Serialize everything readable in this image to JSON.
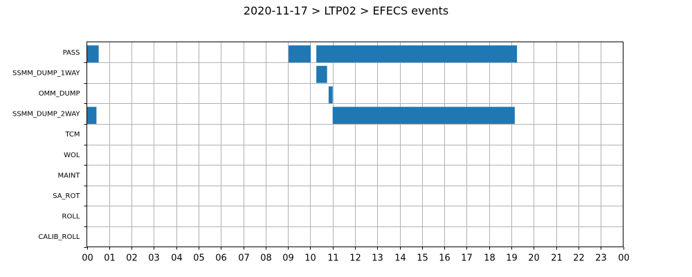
{
  "chart_data": {
    "type": "bar",
    "orientation": "horizontal-timeline",
    "title": "2020-11-17 > LTP02 > EFECS events",
    "xlabel": "",
    "ylabel": "",
    "xlim": [
      0,
      24
    ],
    "x_ticks": [
      "00",
      "01",
      "02",
      "03",
      "04",
      "05",
      "06",
      "07",
      "08",
      "09",
      "10",
      "11",
      "12",
      "13",
      "14",
      "15",
      "16",
      "17",
      "18",
      "19",
      "20",
      "21",
      "22",
      "23",
      "00"
    ],
    "categories": [
      "PASS",
      "SSMM_DUMP_1WAY",
      "OMM_DUMP",
      "SSMM_DUMP_2WAY",
      "TCM",
      "WOL",
      "MAINT",
      "SA_ROT",
      "ROLL",
      "CALIB_ROLL"
    ],
    "grid": true,
    "bar_color": "#1f77b4",
    "events": [
      {
        "category": "PASS",
        "start": 0.0,
        "end": 0.53
      },
      {
        "category": "PASS",
        "start": 9.03,
        "end": 10.02
      },
      {
        "category": "PASS",
        "start": 10.27,
        "end": 19.25
      },
      {
        "category": "SSMM_DUMP_1WAY",
        "start": 10.27,
        "end": 10.75
      },
      {
        "category": "OMM_DUMP",
        "start": 10.82,
        "end": 11.0
      },
      {
        "category": "SSMM_DUMP_2WAY",
        "start": 0.0,
        "end": 0.43
      },
      {
        "category": "SSMM_DUMP_2WAY",
        "start": 11.0,
        "end": 19.15
      }
    ]
  }
}
